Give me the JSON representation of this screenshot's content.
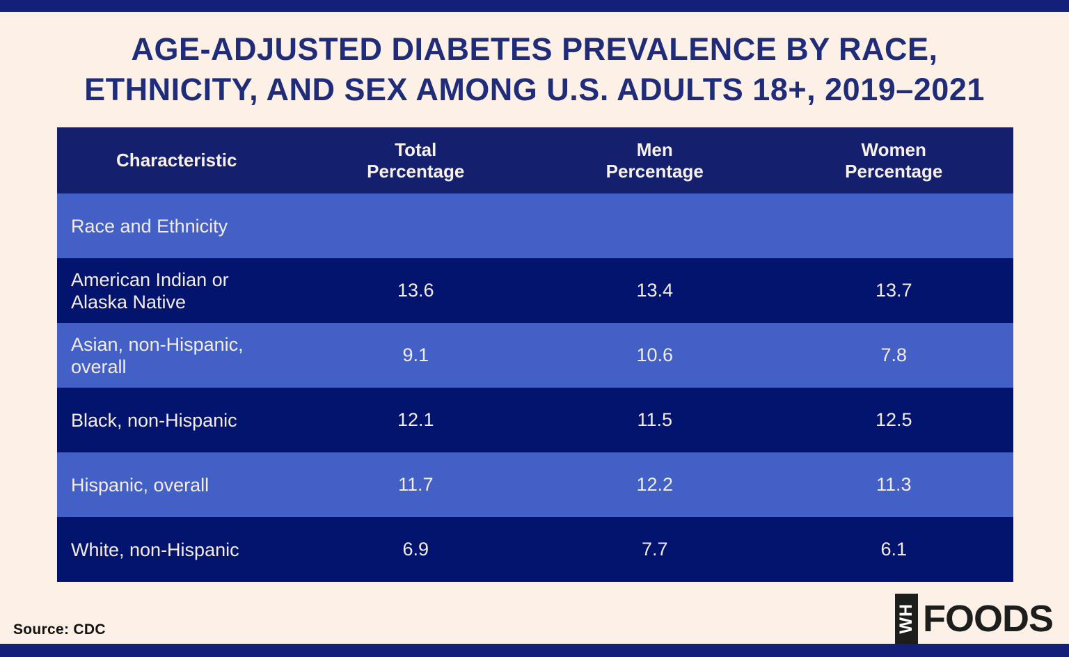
{
  "page": {
    "title_line1": "AGE-ADJUSTED DIABETES PREVALENCE BY RACE,",
    "title_line2": "ETHNICITY, AND SEX AMONG U.S. ADULTS 18+, 2019–2021",
    "source_label": "Source: CDC",
    "logo": {
      "mark": "WH",
      "wordmark": "FOODS"
    }
  },
  "colors": {
    "background_cream": "#fdf0e7",
    "edge_bar_navy": "#131f78",
    "table_dark_navy": "#03146e",
    "table_header_navy": "#141f6e",
    "table_medium_blue": "#4360c6",
    "title_navy": "#1f2c7a",
    "text_offwhite": "#f3ece8",
    "logo_black": "#1d1d1b"
  },
  "table": {
    "header": {
      "characteristic": "Characteristic",
      "total_l1": "Total",
      "total_l2": "Percentage",
      "men_l1": "Men",
      "men_l2": "Percentage",
      "women_l1": "Women",
      "women_l2": "Percentage"
    },
    "section_row": {
      "label": "Race and Ethnicity"
    },
    "rows": [
      {
        "label": "American Indian or Alaska Native",
        "total": "13.6",
        "men": "13.4",
        "women": "13.7"
      },
      {
        "label": "Asian, non-Hispanic, overall",
        "total": "9.1",
        "men": "10.6",
        "women": "7.8"
      },
      {
        "label": "Black, non-Hispanic",
        "total": "12.1",
        "men": "11.5",
        "women": "12.5"
      },
      {
        "label": "Hispanic, overall",
        "total": "11.7",
        "men": "12.2",
        "women": "11.3"
      },
      {
        "label": "White, non-Hispanic",
        "total": "6.9",
        "men": "7.7",
        "women": "6.1"
      }
    ]
  },
  "chart_data": {
    "type": "table",
    "title": "AGE-ADJUSTED DIABETES PREVALENCE BY RACE, ETHNICITY, AND SEX AMONG U.S. ADULTS 18+, 2019–2021",
    "columns": [
      "Characteristic",
      "Total Percentage",
      "Men Percentage",
      "Women Percentage"
    ],
    "section": "Race and Ethnicity",
    "rows": [
      {
        "characteristic": "American Indian or Alaska Native",
        "total_pct": 13.6,
        "men_pct": 13.4,
        "women_pct": 13.7
      },
      {
        "characteristic": "Asian, non-Hispanic, overall",
        "total_pct": 9.1,
        "men_pct": 10.6,
        "women_pct": 7.8
      },
      {
        "characteristic": "Black, non-Hispanic",
        "total_pct": 12.1,
        "men_pct": 11.5,
        "women_pct": 12.5
      },
      {
        "characteristic": "Hispanic, overall",
        "total_pct": 11.7,
        "men_pct": 12.2,
        "women_pct": 11.3
      },
      {
        "characteristic": "White, non-Hispanic",
        "total_pct": 6.9,
        "men_pct": 7.7,
        "women_pct": 6.1
      }
    ],
    "source": "CDC",
    "unit": "percent",
    "population": "U.S. adults 18+",
    "years": "2019–2021"
  }
}
